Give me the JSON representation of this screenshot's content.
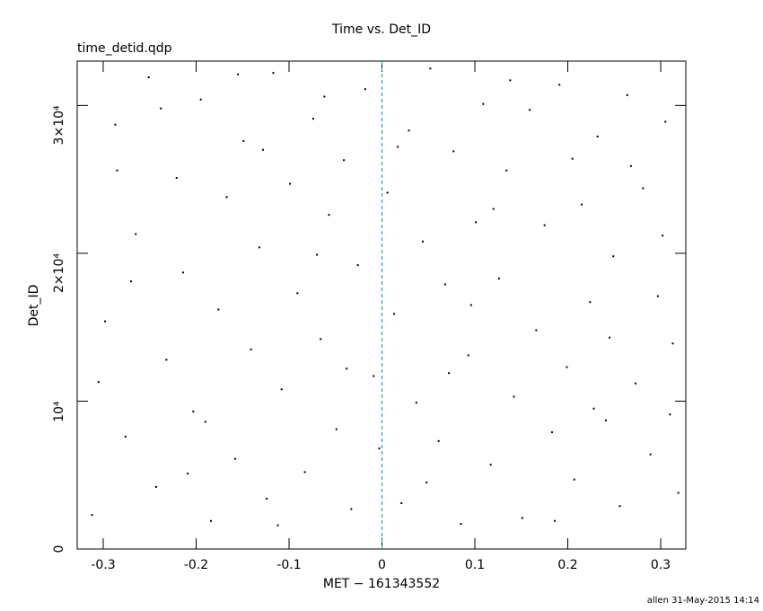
{
  "chart_data": {
    "type": "scatter",
    "title": "Time vs. Det_ID",
    "subtitle": "time_detid.qdp",
    "x_label": "MET − 161343552",
    "y_label": "Det_ID",
    "footer": "allen 31-May-2015 14:14",
    "color": "#000000",
    "vline": 0,
    "vline_color": "#0097a7",
    "xlim": [
      -0.328,
      0.327
    ],
    "ylim": [
      0,
      33000
    ],
    "xticks": [
      -0.3,
      -0.2,
      -0.1,
      0,
      0.1,
      0.2,
      0.3
    ],
    "yticks": [
      0,
      {
        "value": 10000,
        "label": "10⁴"
      },
      {
        "value": 20000,
        "label": "2×10⁴"
      },
      {
        "value": 30000,
        "label": "3×10⁴"
      }
    ],
    "x": [
      -0.312,
      -0.298,
      -0.287,
      -0.276,
      -0.265,
      -0.251,
      -0.243,
      -0.232,
      -0.221,
      -0.214,
      -0.203,
      -0.195,
      -0.184,
      -0.176,
      -0.167,
      -0.158,
      -0.149,
      -0.141,
      -0.132,
      -0.124,
      -0.117,
      -0.108,
      -0.099,
      -0.091,
      -0.083,
      -0.074,
      -0.066,
      -0.057,
      -0.049,
      -0.041,
      -0.033,
      -0.026,
      -0.018,
      -0.009,
      -0.003,
      0.006,
      0.013,
      0.021,
      0.029,
      0.037,
      0.044,
      0.052,
      0.061,
      0.068,
      0.077,
      0.085,
      0.093,
      0.101,
      0.109,
      0.117,
      0.126,
      0.134,
      0.142,
      0.151,
      0.159,
      0.166,
      0.175,
      0.183,
      0.191,
      0.199,
      0.207,
      0.215,
      0.224,
      0.232,
      0.241,
      0.249,
      0.256,
      0.264,
      0.273,
      0.281,
      0.289,
      0.297,
      0.305,
      0.313,
      0.319,
      -0.305,
      -0.27,
      -0.238,
      -0.19,
      -0.155,
      -0.112,
      -0.07,
      -0.038,
      0.017,
      0.048,
      0.096,
      0.138,
      0.186,
      0.228,
      0.268,
      0.302,
      -0.285,
      -0.209,
      -0.128,
      -0.062,
      0.072,
      0.12,
      0.205,
      0.245,
      0.31
    ],
    "values": [
      2300,
      15400,
      28700,
      7600,
      21300,
      31900,
      4200,
      12800,
      25100,
      18700,
      9300,
      30400,
      1900,
      16200,
      23800,
      6100,
      27600,
      13500,
      20400,
      3400,
      32200,
      10800,
      24700,
      17300,
      5200,
      29100,
      14200,
      22600,
      8100,
      26300,
      2700,
      19200,
      31100,
      11700,
      6800,
      24100,
      15900,
      3100,
      28300,
      9900,
      20800,
      32500,
      7300,
      17900,
      26900,
      1700,
      13100,
      22100,
      30100,
      5700,
      18300,
      25600,
      10300,
      2100,
      29700,
      14800,
      21900,
      7900,
      31400,
      12300,
      4700,
      23300,
      16700,
      27900,
      8700,
      19800,
      2900,
      30700,
      11200,
      24400,
      6400,
      17100,
      28900,
      13900,
      3800,
      11300,
      18100,
      29800,
      8600,
      32100,
      1600,
      19900,
      12200,
      27200,
      4500,
      16500,
      31700,
      1900,
      9500,
      25900,
      21200,
      25600,
      5100,
      27000,
      30600,
      11900,
      23000,
      26400,
      14300,
      9100
    ]
  }
}
